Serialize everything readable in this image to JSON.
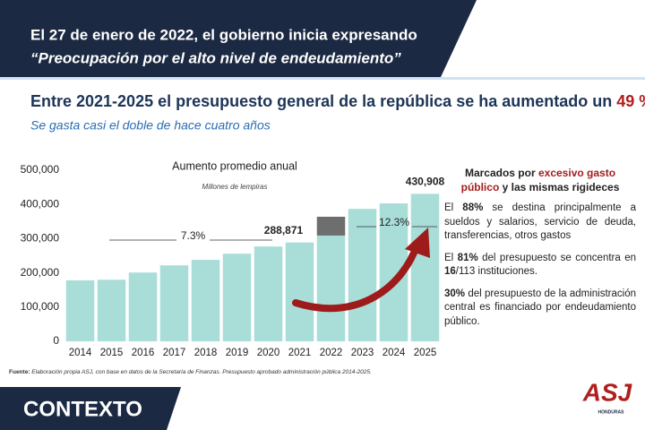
{
  "header": {
    "line1": "El 27 de enero de 2022, el gobierno inicia expresando",
    "line2": "“Preocupación por el alto nivel de endeudamiento”"
  },
  "headline": {
    "text": "Entre 2021-2025 el presupuesto general de la república se ha aumentado un ",
    "highlight": "49 %"
  },
  "subtitle": "Se gasta casi el doble de hace cuatro años",
  "chart_data": {
    "type": "bar",
    "title": "Aumento promedio anual",
    "subtitle": "Millones de lempiras",
    "categories": [
      "2014",
      "2015",
      "2016",
      "2017",
      "2018",
      "2019",
      "2020",
      "2021",
      "2022",
      "2023",
      "2024",
      "2025"
    ],
    "series": [
      {
        "color": "#a9ddd8",
        "values": [
          178000,
          180000,
          201000,
          222000,
          238000,
          256000,
          277000,
          288871,
          309000,
          387000,
          403000,
          430908
        ],
        "value_labels": [
          null,
          null,
          null,
          null,
          null,
          null,
          null,
          "288,871",
          null,
          null,
          null,
          "430,908"
        ]
      },
      {
        "color": "#6e6e6e",
        "values": [
          null,
          null,
          null,
          null,
          null,
          null,
          null,
          null,
          55000,
          null,
          null,
          null
        ]
      }
    ],
    "ylim": [
      0,
      500000
    ],
    "yticks": [
      0,
      {
        "value": 100000,
        "label": "100,000"
      },
      {
        "value": 200000,
        "label": "200,000"
      },
      {
        "value": 300000,
        "label": "300,000"
      },
      {
        "value": 400000,
        "label": "400,000"
      },
      {
        "value": 500000,
        "label": "500,000"
      }
    ],
    "annotations": [
      {
        "text": "7.3%"
      },
      {
        "text": "12.3%"
      }
    ]
  },
  "panel": {
    "heading": [
      "Marcados por ",
      "excesivo gasto público",
      " y las mismas rigideces"
    ],
    "points": [
      [
        "El ",
        "88%",
        " se destina principalmente a sueldos y salarios, servicio de deuda, transferencias, otros gastos"
      ],
      [
        "El ",
        "81%",
        " del presupuesto se concentra en ",
        "16",
        "/113 instituciones."
      ],
      [
        "30%",
        " del presupuesto de la administración central es financiado por endeudamiento público."
      ]
    ]
  },
  "footer": {
    "source": [
      "Fuente:",
      " Elaboración propia ASJ, con base en datos de la Secretaría de Finanzas. Presupuesto aprobado administración pública 2014-2025."
    ],
    "section": "CONTEXTO",
    "logo": "ASJ",
    "logo_sub": "HONDURAS"
  }
}
